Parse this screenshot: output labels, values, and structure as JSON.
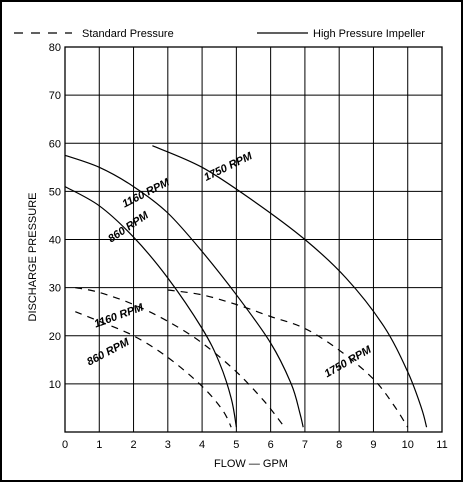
{
  "chart_data": {
    "type": "line",
    "title": "",
    "xlabel": "FLOW — GPM",
    "ylabel": "DISCHARGE PRESSURE",
    "xlim": [
      0,
      11
    ],
    "ylim": [
      0,
      80
    ],
    "x_ticks": [
      0,
      1,
      2,
      3,
      4,
      5,
      6,
      7,
      8,
      9,
      10,
      11
    ],
    "y_ticks": [
      10,
      20,
      30,
      40,
      50,
      60,
      70,
      80
    ],
    "grid": true,
    "legend_position": "top",
    "legend": [
      {
        "label": "Standard Pressure",
        "style": "dashed"
      },
      {
        "label": "High Pressure Impeller",
        "style": "solid"
      }
    ],
    "series": [
      {
        "name": "1750 RPM",
        "style": "solid",
        "points": [
          [
            2.55,
            59.5
          ],
          [
            4.0,
            55.0
          ],
          [
            5.5,
            48.0
          ],
          [
            7.0,
            40.0
          ],
          [
            8.2,
            32.0
          ],
          [
            9.3,
            22.0
          ],
          [
            10.0,
            12.5
          ],
          [
            10.4,
            5.0
          ],
          [
            10.55,
            1.0
          ]
        ]
      },
      {
        "name": "1160 RPM",
        "style": "solid",
        "points": [
          [
            0.0,
            57.5
          ],
          [
            1.0,
            55.0
          ],
          [
            2.0,
            51.0
          ],
          [
            3.0,
            45.5
          ],
          [
            4.0,
            37.5
          ],
          [
            5.0,
            28.5
          ],
          [
            6.0,
            18.5
          ],
          [
            6.6,
            10.0
          ],
          [
            6.85,
            4.0
          ],
          [
            6.95,
            1.0
          ]
        ]
      },
      {
        "name": "860 RPM",
        "style": "solid",
        "points": [
          [
            0.0,
            51.0
          ],
          [
            1.0,
            47.0
          ],
          [
            2.0,
            40.5
          ],
          [
            3.0,
            32.0
          ],
          [
            4.0,
            21.5
          ],
          [
            4.5,
            14.5
          ],
          [
            4.85,
            7.0
          ],
          [
            5.0,
            1.0
          ]
        ]
      },
      {
        "name": "1750 RPM",
        "style": "dashed",
        "points": [
          [
            3.0,
            29.5
          ],
          [
            4.0,
            28.5
          ],
          [
            5.0,
            26.5
          ],
          [
            6.0,
            24.0
          ],
          [
            7.0,
            21.5
          ],
          [
            8.0,
            17.0
          ],
          [
            9.0,
            11.0
          ],
          [
            9.6,
            5.5
          ],
          [
            10.0,
            1.0
          ]
        ]
      },
      {
        "name": "1160 RPM",
        "style": "dashed",
        "points": [
          [
            0.3,
            30.0
          ],
          [
            1.0,
            29.0
          ],
          [
            2.0,
            26.5
          ],
          [
            3.0,
            23.0
          ],
          [
            4.0,
            18.5
          ],
          [
            5.0,
            12.5
          ],
          [
            5.8,
            6.5
          ],
          [
            6.3,
            2.0
          ],
          [
            6.4,
            1.0
          ]
        ]
      },
      {
        "name": "860 RPM",
        "style": "dashed",
        "points": [
          [
            0.3,
            25.0
          ],
          [
            1.0,
            23.0
          ],
          [
            2.0,
            20.0
          ],
          [
            3.0,
            15.5
          ],
          [
            4.0,
            9.5
          ],
          [
            4.6,
            4.5
          ],
          [
            4.85,
            1.0
          ]
        ]
      }
    ],
    "curve_labels": [
      {
        "text": "1750 RPM",
        "x": 4.8,
        "y": 54.5,
        "angle": -26
      },
      {
        "text": "1160 RPM",
        "x": 2.4,
        "y": 49.0,
        "angle": -27
      },
      {
        "text": "860 RPM",
        "x": 1.9,
        "y": 42.0,
        "angle": -34
      },
      {
        "text": "1160 RPM",
        "x": 1.6,
        "y": 23.5,
        "angle": -20
      },
      {
        "text": "860 RPM",
        "x": 1.3,
        "y": 16.0,
        "angle": -28
      },
      {
        "text": "1750 RPM",
        "x": 8.3,
        "y": 14.0,
        "angle": -30
      }
    ]
  }
}
